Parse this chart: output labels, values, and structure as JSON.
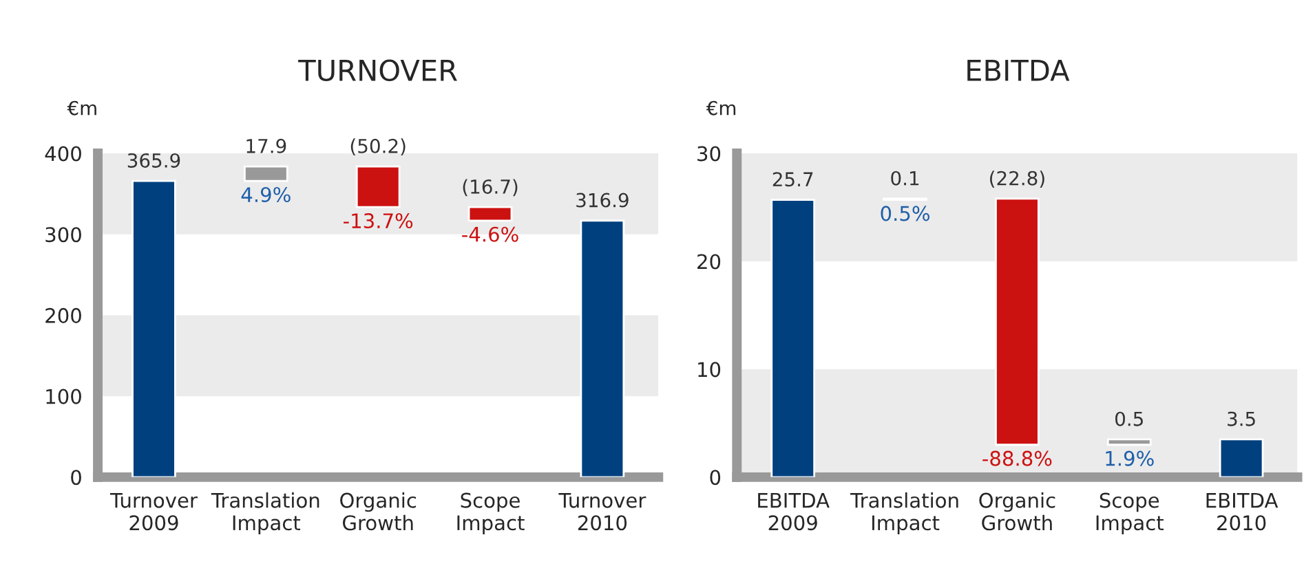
{
  "chart_data": [
    {
      "type": "bar",
      "title": "TURNOVER",
      "ylabel": "€m",
      "categories": [
        "Turnover\n2009",
        "Translation\nImpact",
        "Organic\nGrowth",
        "Scope\nImpact",
        "Turnover\n2010"
      ],
      "values": [
        365.9,
        17.9,
        -50.2,
        -16.7,
        316.9
      ],
      "base": [
        0,
        365.9,
        383.8,
        333.6,
        0
      ],
      "colors": [
        "#00407f",
        "#999999",
        "#cc1111",
        "#cc1111",
        "#00407f"
      ],
      "value_labels": [
        "365.9",
        "17.9",
        "(50.2)",
        "(16.7)",
        "316.9"
      ],
      "annotations": [
        {
          "text": "4.9%",
          "x": "Translation\nImpact",
          "y": 365.9
        },
        {
          "text": "-13.7%",
          "x": "Organic\nGrowth",
          "y": 333.6
        },
        {
          "text": "-4.6%",
          "x": "Scope\nImpact",
          "y": 316.9
        }
      ],
      "ylim": [
        0,
        400
      ],
      "yticks": [
        0,
        100,
        200,
        300,
        400
      ],
      "bands": [
        {
          "axis": "y",
          "from": 100,
          "to": 200,
          "color": "#ebebeb"
        },
        {
          "axis": "y",
          "from": 300,
          "to": 400,
          "color": "#ebebeb"
        }
      ],
      "grid": false,
      "legend": false
    },
    {
      "type": "bar",
      "title": "EBITDA",
      "ylabel": "€m",
      "categories": [
        "EBITDA\n2009",
        "Translation\nImpact",
        "Organic\nGrowth",
        "Scope\nImpact",
        "EBITDA\n2010"
      ],
      "values": [
        25.7,
        0.1,
        -22.8,
        0.5,
        3.5
      ],
      "base": [
        0,
        25.7,
        25.8,
        3.0,
        0
      ],
      "colors": [
        "#00407f",
        "#999999",
        "#cc1111",
        "#999999",
        "#00407f"
      ],
      "value_labels": [
        "25.7",
        "0.1",
        "(22.8)",
        "0.5",
        "3.5"
      ],
      "annotations": [
        {
          "text": "0.5%",
          "x": "Translation\nImpact",
          "y": 25.7
        },
        {
          "text": "-88.8%",
          "x": "Organic\nGrowth",
          "y": 3.0
        },
        {
          "text": "1.9%",
          "x": "Scope\nImpact",
          "y": 3.0
        }
      ],
      "ylim": [
        0,
        30
      ],
      "yticks": [
        0,
        10,
        20,
        30
      ],
      "bands": [
        {
          "axis": "y",
          "from": 0,
          "to": 10,
          "color": "#ebebeb"
        },
        {
          "axis": "y",
          "from": 20,
          "to": 30,
          "color": "#ebebeb"
        }
      ],
      "grid": false,
      "legend": false
    }
  ]
}
